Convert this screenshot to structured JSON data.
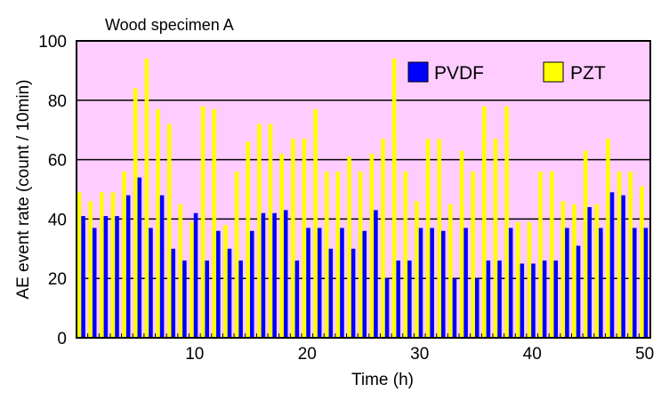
{
  "chart_data": {
    "type": "bar",
    "title": "Wood specimen A",
    "xlabel": "Time (h)",
    "ylabel": "AE event rate (count / 10min)",
    "xlim": [
      0,
      50
    ],
    "ylim": [
      0,
      100
    ],
    "xticks": [
      0,
      10,
      20,
      30,
      40,
      50
    ],
    "xtick_labels": [
      "0",
      "10",
      "20",
      "30",
      "40",
      "50"
    ],
    "yticks": [
      0,
      20,
      40,
      60,
      80,
      100
    ],
    "ytick_labels": [
      "0",
      "20",
      "40",
      "60",
      "80",
      "100"
    ],
    "grid": "horizontal",
    "legend_position": "top-right",
    "background_color": "#ffccff",
    "x": [
      0,
      1,
      2,
      3,
      4,
      5,
      6,
      7,
      8,
      9,
      10,
      11,
      12,
      13,
      14,
      15,
      16,
      17,
      18,
      19,
      20,
      21,
      22,
      23,
      24,
      25,
      26,
      27,
      28,
      29,
      30,
      31,
      32,
      33,
      34,
      35,
      36,
      37,
      38,
      39,
      40,
      41,
      42,
      43,
      44,
      45,
      46,
      47,
      48,
      49,
      50
    ],
    "series": [
      {
        "name": "PZT",
        "color": "#ffff00",
        "values": [
          49,
          46,
          49,
          49,
          56,
          84,
          94,
          77,
          72,
          45,
          39,
          78,
          77,
          38,
          56,
          66,
          72,
          72,
          62,
          67,
          67,
          77,
          56,
          56,
          61,
          56,
          62,
          67,
          94,
          56,
          46,
          67,
          67,
          45,
          63,
          56,
          78,
          67,
          78,
          39,
          39,
          56,
          56,
          46,
          45,
          63,
          45,
          67,
          56,
          56,
          51
        ]
      },
      {
        "name": "PVDF",
        "color": "#0000ff",
        "values": [
          41,
          37,
          41,
          41,
          48,
          54,
          37,
          48,
          30,
          26,
          42,
          26,
          36,
          30,
          26,
          36,
          42,
          42,
          43,
          26,
          37,
          37,
          30,
          37,
          30,
          36,
          43,
          20,
          26,
          26,
          37,
          37,
          36,
          20,
          37,
          20,
          26,
          26,
          37,
          25,
          25,
          26,
          26,
          37,
          31,
          44,
          37,
          49,
          48,
          37,
          37
        ]
      }
    ],
    "legend": [
      {
        "label": "PVDF",
        "color": "#0000ff"
      },
      {
        "label": "PZT",
        "color": "#ffff00"
      }
    ]
  }
}
